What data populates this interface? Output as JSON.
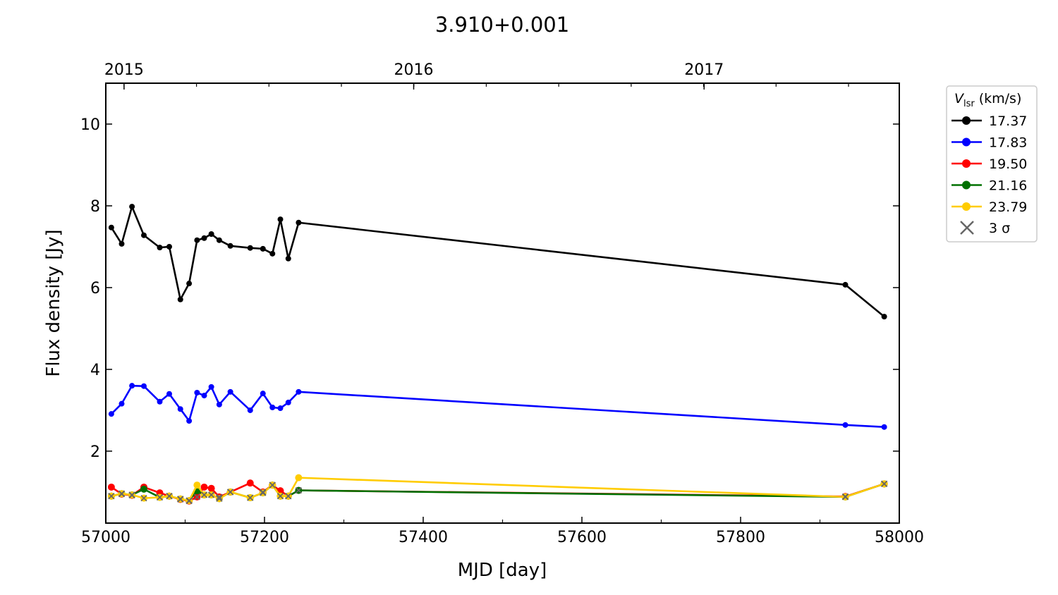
{
  "chart_data": {
    "type": "line",
    "title": "3.910+0.001",
    "xlabel": "MJD [day]",
    "ylabel": "Flux density [Jy]",
    "xlim": [
      57000,
      58000
    ],
    "ylim": [
      0.24,
      11.0
    ],
    "xticks": [
      57000,
      57200,
      57400,
      57600,
      57800,
      58000
    ],
    "xtick_labels": [
      "57000",
      "57200",
      "57400",
      "57600",
      "57800",
      "58000"
    ],
    "yticks": [
      2,
      4,
      6,
      8,
      10
    ],
    "ytick_labels": [
      "2",
      "4",
      "6",
      "8",
      "10"
    ],
    "top_axis": {
      "ticks_mjd": [
        57023,
        57388,
        57754
      ],
      "labels": [
        "2015",
        "2016",
        "2017"
      ]
    },
    "grid": false,
    "legend": {
      "placement": "outside-right-top",
      "title_var": "V",
      "title_sub": "lsr",
      "title_unit": "(km/s)",
      "sigma_label": "3 σ"
    },
    "x": [
      57007,
      57020,
      57033,
      57048,
      57068,
      57080,
      57094,
      57105,
      57115,
      57124,
      57133,
      57143,
      57157,
      57182,
      57198,
      57210,
      57220,
      57230,
      57243,
      57932,
      57981
    ],
    "series": [
      {
        "name": "17.37",
        "color": "#000000",
        "values": [
          7.47,
          7.07,
          7.98,
          7.28,
          6.98,
          7.0,
          5.71,
          6.1,
          7.16,
          7.21,
          7.31,
          7.16,
          7.02,
          6.97,
          6.95,
          6.83,
          7.67,
          6.71,
          7.59,
          6.07,
          5.29
        ],
        "sigma3": []
      },
      {
        "name": "17.83",
        "color": "#0000ff",
        "values": [
          2.91,
          3.16,
          3.6,
          3.59,
          3.21,
          3.4,
          3.03,
          2.74,
          3.43,
          3.36,
          3.57,
          3.14,
          3.45,
          3.0,
          3.41,
          3.07,
          3.05,
          3.19,
          3.45,
          2.64,
          2.59
        ],
        "sigma3": []
      },
      {
        "name": "19.50",
        "color": "#ff0000",
        "values": [
          1.12,
          0.95,
          0.92,
          1.12,
          0.98,
          0.9,
          0.82,
          0.78,
          0.88,
          1.12,
          1.09,
          0.88,
          1.0,
          1.22,
          1.0,
          1.17,
          1.03,
          0.9,
          1.04,
          0.89,
          1.2
        ],
        "sigma3": [
          false,
          true,
          true,
          false,
          false,
          true,
          true,
          true,
          true,
          false,
          false,
          true,
          true,
          false,
          true,
          true,
          false,
          true,
          true,
          true,
          true
        ]
      },
      {
        "name": "21.16",
        "color": "#007000",
        "values": [
          0.9,
          0.96,
          0.93,
          1.07,
          0.87,
          0.9,
          0.83,
          0.79,
          1.03,
          0.93,
          0.93,
          0.84,
          1.0,
          0.86,
          0.98,
          1.17,
          0.9,
          0.9,
          1.04,
          0.88,
          1.2
        ],
        "sigma3": [
          true,
          true,
          true,
          false,
          true,
          true,
          true,
          true,
          false,
          true,
          true,
          true,
          true,
          true,
          true,
          true,
          true,
          true,
          true,
          true,
          true
        ]
      },
      {
        "name": "23.79",
        "color": "#ffcc00",
        "values": [
          0.9,
          0.96,
          0.93,
          0.85,
          0.87,
          0.9,
          0.83,
          0.79,
          1.17,
          0.93,
          0.93,
          0.84,
          1.0,
          0.86,
          0.98,
          1.17,
          0.9,
          0.9,
          1.35,
          0.88,
          1.2
        ],
        "sigma3": [
          true,
          true,
          true,
          true,
          true,
          true,
          true,
          true,
          false,
          true,
          true,
          true,
          true,
          true,
          true,
          true,
          true,
          true,
          false,
          true,
          true
        ]
      }
    ]
  }
}
